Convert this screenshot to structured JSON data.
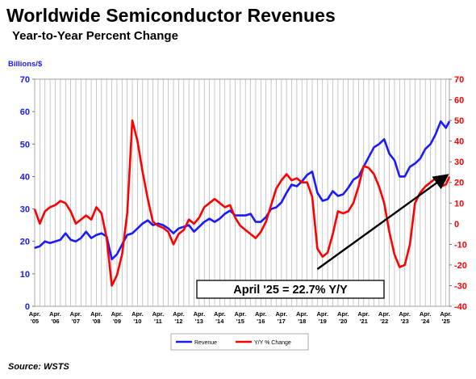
{
  "header": {
    "title": "Worldwide Semiconductor Revenues",
    "subtitle": "Year-to-Year Percent Change"
  },
  "footer": {
    "source": "Source: WSTS"
  },
  "annotation": {
    "text": "April '25 = 22.7% Y/Y"
  },
  "colors": {
    "revenue": "#1a1aff",
    "yoy": "#ff0000",
    "arrow": "#000000",
    "grid": "#b0b0b0"
  },
  "chart_data": {
    "type": "line",
    "title": "Worldwide Semiconductor Revenues",
    "subtitle": "Year-to-Year Percent Change",
    "ylabel_left": "Billions/$",
    "ylim_left": [
      0,
      70
    ],
    "ylim_right": [
      -40,
      70
    ],
    "yticks_left": [
      "0",
      "10",
      "20",
      "30",
      "40",
      "50",
      "60",
      "70"
    ],
    "yticks_right": [
      "-40",
      "-30",
      "-20",
      "-10",
      "0",
      "10",
      "20",
      "30",
      "40",
      "50",
      "60",
      "70"
    ],
    "x_ticks": [
      {
        "top": "Apr.",
        "bottom": "'05"
      },
      {
        "top": "Apr.",
        "bottom": "'06"
      },
      {
        "top": "Apr.",
        "bottom": "'07"
      },
      {
        "top": "Apr.",
        "bottom": "'08"
      },
      {
        "top": "Apr.",
        "bottom": "'09"
      },
      {
        "top": "Apr.",
        "bottom": "'10"
      },
      {
        "top": "Apr.",
        "bottom": "'11"
      },
      {
        "top": "Apr.",
        "bottom": "'12"
      },
      {
        "top": "Apr.",
        "bottom": "'13"
      },
      {
        "top": "Apr.",
        "bottom": "'14"
      },
      {
        "top": "Apr.",
        "bottom": "'15"
      },
      {
        "top": "Apr.",
        "bottom": "'16"
      },
      {
        "top": "Apr.",
        "bottom": "'17"
      },
      {
        "top": "Apr.",
        "bottom": "'18"
      },
      {
        "top": "Apr.",
        "bottom": "'19"
      },
      {
        "top": "Apr.",
        "bottom": "'20"
      },
      {
        "top": "Apr.",
        "bottom": "'21"
      },
      {
        "top": "Apr.",
        "bottom": "'22"
      },
      {
        "top": "Apr.",
        "bottom": "'23"
      },
      {
        "top": "Apr.",
        "bottom": "'24"
      },
      {
        "top": "Apr.",
        "bottom": "'25"
      }
    ],
    "grid": true,
    "legend_position": "bottom",
    "series": [
      {
        "name": "Revenue",
        "axis": "left",
        "points": [
          [
            2005.25,
            18.0
          ],
          [
            2005.5,
            18.5
          ],
          [
            2005.75,
            20.0
          ],
          [
            2006.0,
            19.5
          ],
          [
            2006.25,
            20.0
          ],
          [
            2006.5,
            20.5
          ],
          [
            2006.75,
            22.5
          ],
          [
            2007.0,
            20.5
          ],
          [
            2007.25,
            20.0
          ],
          [
            2007.5,
            21.0
          ],
          [
            2007.75,
            23.0
          ],
          [
            2008.0,
            21.0
          ],
          [
            2008.25,
            22.0
          ],
          [
            2008.5,
            22.5
          ],
          [
            2008.75,
            21.5
          ],
          [
            2009.0,
            14.5
          ],
          [
            2009.25,
            16.0
          ],
          [
            2009.5,
            19.0
          ],
          [
            2009.75,
            22.0
          ],
          [
            2010.0,
            22.5
          ],
          [
            2010.25,
            24.0
          ],
          [
            2010.5,
            25.5
          ],
          [
            2010.75,
            26.5
          ],
          [
            2011.0,
            25.0
          ],
          [
            2011.25,
            25.5
          ],
          [
            2011.5,
            25.0
          ],
          [
            2011.75,
            24.0
          ],
          [
            2012.0,
            22.5
          ],
          [
            2012.25,
            24.0
          ],
          [
            2012.5,
            24.5
          ],
          [
            2012.75,
            25.0
          ],
          [
            2013.0,
            23.0
          ],
          [
            2013.25,
            24.5
          ],
          [
            2013.5,
            26.0
          ],
          [
            2013.75,
            27.0
          ],
          [
            2014.0,
            26.0
          ],
          [
            2014.25,
            27.0
          ],
          [
            2014.5,
            28.5
          ],
          [
            2014.75,
            29.5
          ],
          [
            2015.0,
            28.0
          ],
          [
            2015.25,
            28.0
          ],
          [
            2015.5,
            28.0
          ],
          [
            2015.75,
            28.5
          ],
          [
            2016.0,
            26.0
          ],
          [
            2016.25,
            26.0
          ],
          [
            2016.5,
            27.5
          ],
          [
            2016.75,
            30.0
          ],
          [
            2017.0,
            30.5
          ],
          [
            2017.25,
            32.0
          ],
          [
            2017.5,
            35.0
          ],
          [
            2017.75,
            37.5
          ],
          [
            2018.0,
            37.0
          ],
          [
            2018.25,
            38.5
          ],
          [
            2018.5,
            40.5
          ],
          [
            2018.75,
            41.5
          ],
          [
            2019.0,
            35.0
          ],
          [
            2019.25,
            32.5
          ],
          [
            2019.5,
            33.0
          ],
          [
            2019.75,
            35.5
          ],
          [
            2020.0,
            34.0
          ],
          [
            2020.25,
            34.5
          ],
          [
            2020.5,
            36.5
          ],
          [
            2020.75,
            39.0
          ],
          [
            2021.0,
            40.0
          ],
          [
            2021.25,
            43.0
          ],
          [
            2021.5,
            46.0
          ],
          [
            2021.75,
            49.0
          ],
          [
            2022.0,
            50.0
          ],
          [
            2022.25,
            51.5
          ],
          [
            2022.5,
            47.0
          ],
          [
            2022.75,
            45.0
          ],
          [
            2023.0,
            40.0
          ],
          [
            2023.25,
            40.0
          ],
          [
            2023.5,
            43.0
          ],
          [
            2023.75,
            44.0
          ],
          [
            2024.0,
            45.5
          ],
          [
            2024.25,
            48.5
          ],
          [
            2024.5,
            50.0
          ],
          [
            2024.75,
            53.0
          ],
          [
            2025.0,
            57.0
          ],
          [
            2025.25,
            55.0
          ],
          [
            2025.42,
            57.0
          ]
        ]
      },
      {
        "name": "Y/Y % Change",
        "axis": "right",
        "points": [
          [
            2005.25,
            7.0
          ],
          [
            2005.5,
            0.0
          ],
          [
            2005.75,
            6.0
          ],
          [
            2006.0,
            8.0
          ],
          [
            2006.25,
            9.0
          ],
          [
            2006.5,
            11.0
          ],
          [
            2006.75,
            10.0
          ],
          [
            2007.0,
            6.0
          ],
          [
            2007.25,
            0.0
          ],
          [
            2007.5,
            2.0
          ],
          [
            2007.75,
            4.0
          ],
          [
            2008.0,
            2.0
          ],
          [
            2008.25,
            8.0
          ],
          [
            2008.5,
            5.0
          ],
          [
            2008.75,
            -7.0
          ],
          [
            2009.0,
            -30.0
          ],
          [
            2009.25,
            -25.0
          ],
          [
            2009.5,
            -15.0
          ],
          [
            2009.75,
            5.0
          ],
          [
            2010.0,
            50.0
          ],
          [
            2010.25,
            40.0
          ],
          [
            2010.5,
            25.0
          ],
          [
            2010.75,
            12.0
          ],
          [
            2011.0,
            1.0
          ],
          [
            2011.25,
            -1.0
          ],
          [
            2011.5,
            -2.0
          ],
          [
            2011.75,
            -4.0
          ],
          [
            2012.0,
            -10.0
          ],
          [
            2012.25,
            -5.0
          ],
          [
            2012.5,
            -3.0
          ],
          [
            2012.75,
            2.0
          ],
          [
            2013.0,
            0.0
          ],
          [
            2013.25,
            3.0
          ],
          [
            2013.5,
            8.0
          ],
          [
            2013.75,
            10.0
          ],
          [
            2014.0,
            12.0
          ],
          [
            2014.25,
            10.0
          ],
          [
            2014.5,
            8.0
          ],
          [
            2014.75,
            9.0
          ],
          [
            2015.0,
            3.0
          ],
          [
            2015.25,
            -1.0
          ],
          [
            2015.5,
            -3.0
          ],
          [
            2015.75,
            -5.0
          ],
          [
            2016.0,
            -7.0
          ],
          [
            2016.25,
            -4.0
          ],
          [
            2016.5,
            1.0
          ],
          [
            2016.75,
            9.0
          ],
          [
            2017.0,
            17.0
          ],
          [
            2017.25,
            21.0
          ],
          [
            2017.5,
            24.0
          ],
          [
            2017.75,
            21.0
          ],
          [
            2018.0,
            22.0
          ],
          [
            2018.25,
            20.0
          ],
          [
            2018.5,
            20.0
          ],
          [
            2018.75,
            13.0
          ],
          [
            2019.0,
            -12.0
          ],
          [
            2019.25,
            -16.0
          ],
          [
            2019.5,
            -14.0
          ],
          [
            2019.75,
            -5.0
          ],
          [
            2020.0,
            6.0
          ],
          [
            2020.25,
            5.0
          ],
          [
            2020.5,
            6.0
          ],
          [
            2020.75,
            10.0
          ],
          [
            2021.0,
            18.0
          ],
          [
            2021.25,
            28.0
          ],
          [
            2021.5,
            27.0
          ],
          [
            2021.75,
            24.0
          ],
          [
            2022.0,
            18.0
          ],
          [
            2022.25,
            10.0
          ],
          [
            2022.5,
            -4.0
          ],
          [
            2022.75,
            -15.0
          ],
          [
            2023.0,
            -21.0
          ],
          [
            2023.25,
            -20.0
          ],
          [
            2023.5,
            -10.0
          ],
          [
            2023.75,
            10.0
          ],
          [
            2024.0,
            15.0
          ],
          [
            2024.25,
            18.0
          ],
          [
            2024.5,
            20.0
          ],
          [
            2024.75,
            22.0
          ],
          [
            2025.0,
            18.0
          ],
          [
            2025.25,
            19.0
          ],
          [
            2025.42,
            22.7
          ]
        ]
      }
    ],
    "annotation": "April '25 = 22.7% Y/Y",
    "trend_arrow": {
      "from": [
        2019.0,
        -22.0
      ],
      "to": [
        2025.25,
        23.0
      ],
      "axis": "right"
    }
  }
}
